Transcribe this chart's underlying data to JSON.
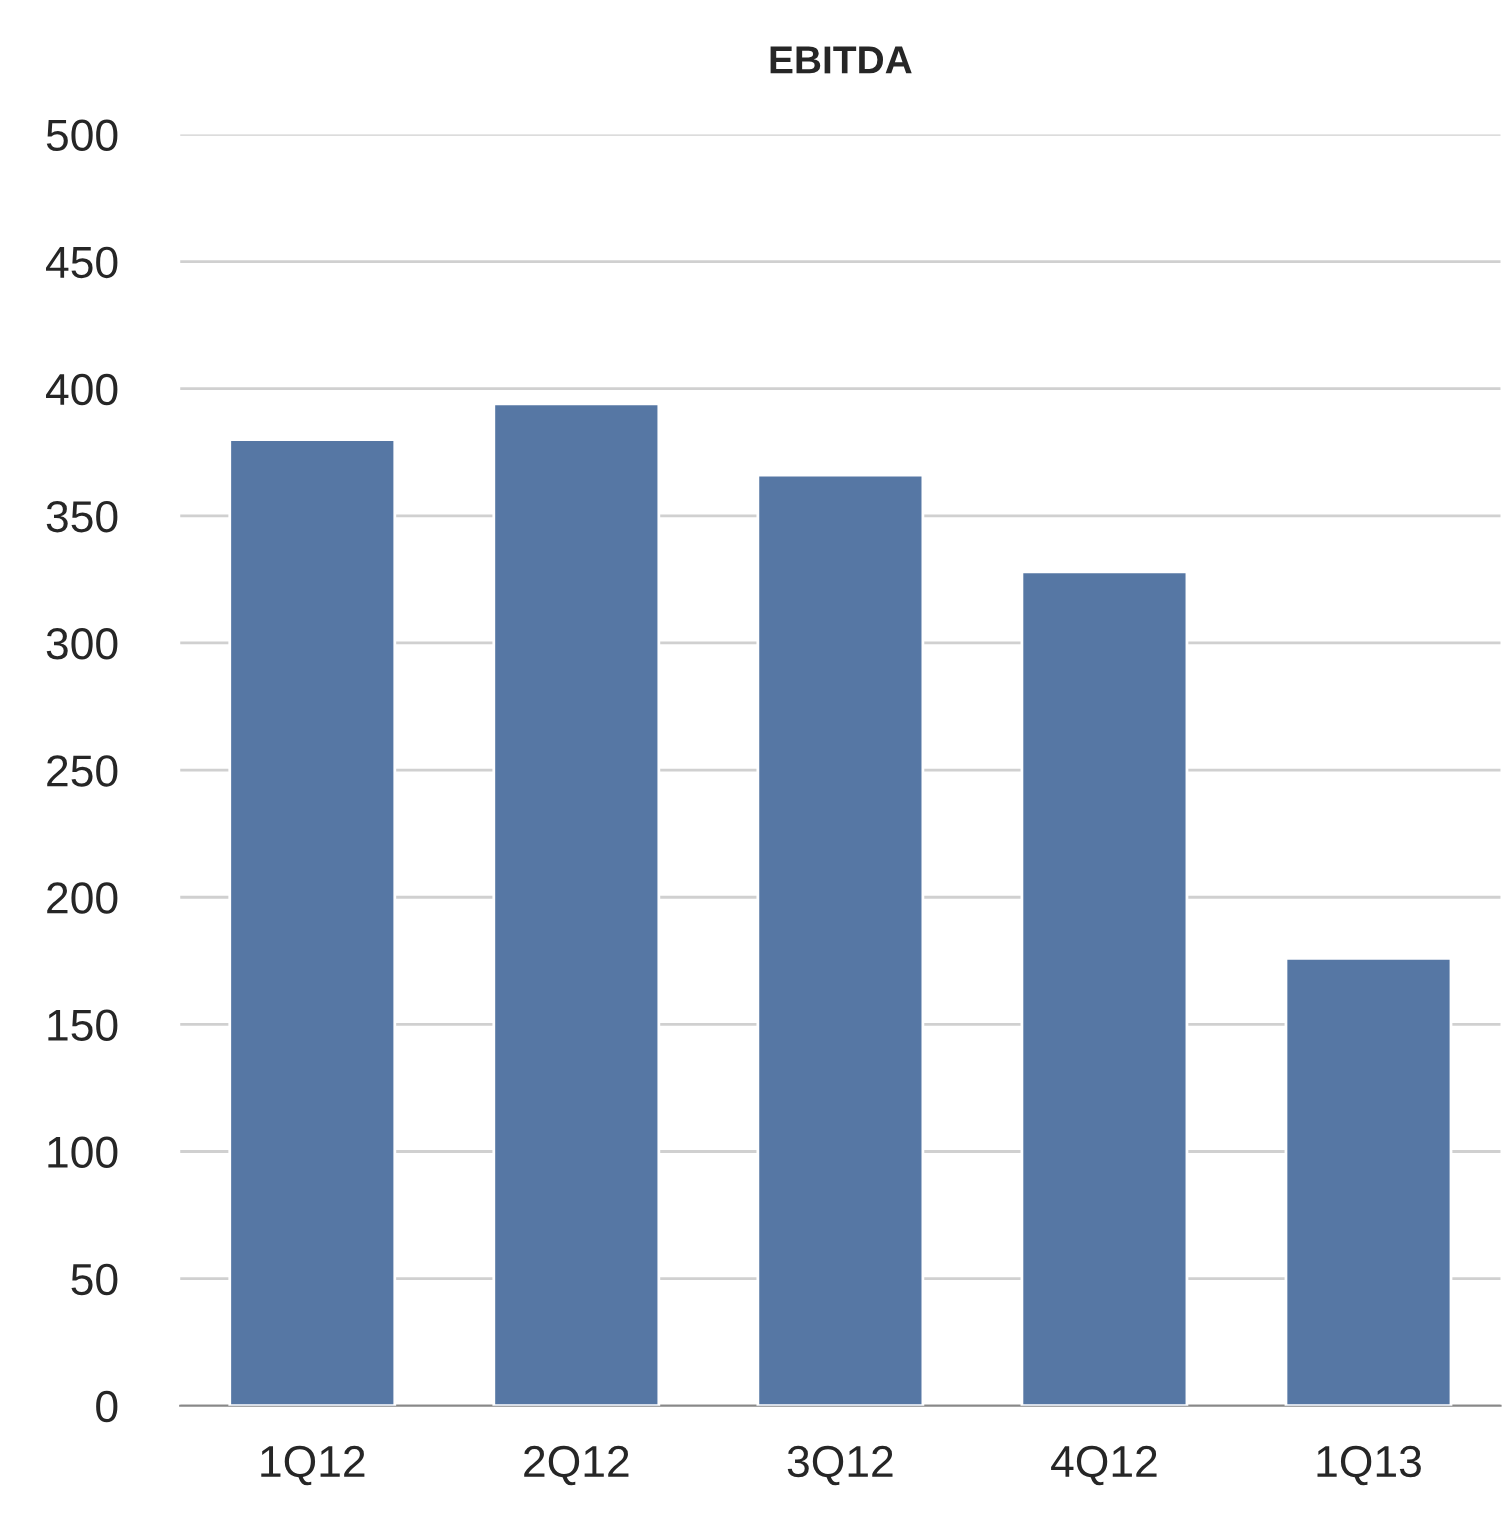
{
  "chart_data": {
    "type": "bar",
    "title": "EBITDA",
    "categories": [
      "1Q12",
      "2Q12",
      "3Q12",
      "4Q12",
      "1Q13"
    ],
    "series": [
      {
        "color": "#5677a4",
        "values": [
          380,
          394,
          366,
          328,
          176
        ]
      }
    ],
    "ylim": [
      0,
      500
    ],
    "yticks": [
      0,
      50,
      100,
      150,
      200,
      250,
      300,
      350,
      400,
      450,
      500
    ],
    "grid": "y",
    "legend": false
  }
}
